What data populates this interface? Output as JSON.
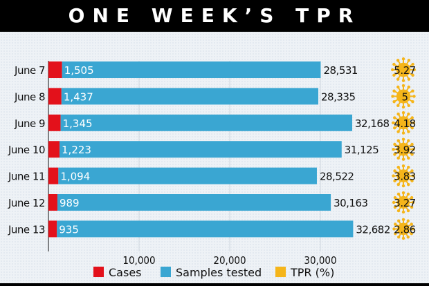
{
  "title": "ONE WEEK’S TPR",
  "chart_data": {
    "type": "bar",
    "orientation": "horizontal",
    "stacked": true,
    "categories": [
      "June 7",
      "June 8",
      "June 9",
      "June 10",
      "June 11",
      "June 12",
      "June 13"
    ],
    "series": [
      {
        "name": "Cases",
        "color": "#e3111b",
        "values": [
          1505,
          1437,
          1345,
          1223,
          1094,
          989,
          935
        ],
        "labels": [
          "1,505",
          "1,437",
          "1,345",
          "1,223",
          "1,094",
          "989",
          "935"
        ]
      },
      {
        "name": "Samples tested",
        "color": "#3aa6d2",
        "values": [
          28531,
          28335,
          32168,
          31125,
          28522,
          30163,
          32682
        ],
        "labels": [
          "28,531",
          "28,335",
          "32,168",
          "31,125",
          "28,522",
          "30,163",
          "32,682"
        ]
      },
      {
        "name": "TPR (%)",
        "color": "#f5b51a",
        "values": [
          5.27,
          5,
          4.18,
          3.92,
          3.83,
          3.27,
          2.86
        ],
        "labels": [
          "5.27",
          "5",
          "4.18",
          "3.92",
          "3.83",
          "3.27",
          "2.86"
        ],
        "icon": "virus-icon"
      }
    ],
    "xticks": [
      10000,
      20000,
      30000
    ],
    "xtick_labels": [
      "10,000",
      "20,000",
      "30,000"
    ],
    "xlim": [
      0,
      36000
    ],
    "grid": true,
    "legend_position": "bottom"
  }
}
